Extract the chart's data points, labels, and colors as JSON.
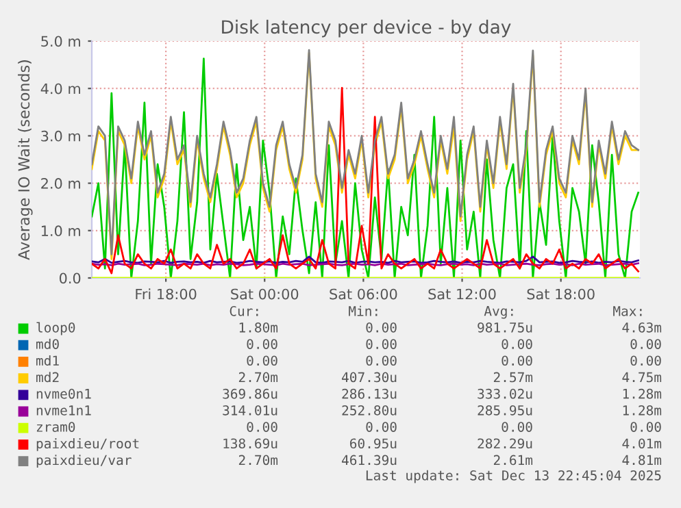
{
  "chart_data": {
    "type": "line",
    "title": "Disk latency per device - by day",
    "ylabel": "Average IO Wait (seconds)",
    "x": [
      "2025-12-12T13:30",
      "2025-12-12T13:54",
      "2025-12-12T14:18",
      "2025-12-12T14:42",
      "2025-12-12T15:06",
      "2025-12-12T15:30",
      "2025-12-12T15:54",
      "2025-12-12T16:18",
      "2025-12-12T16:42",
      "2025-12-12T17:06",
      "2025-12-12T17:30",
      "2025-12-12T17:54",
      "2025-12-12T18:18",
      "2025-12-12T18:42",
      "2025-12-12T19:06",
      "2025-12-12T19:30",
      "2025-12-12T19:54",
      "2025-12-12T20:18",
      "2025-12-12T20:42",
      "2025-12-12T21:06",
      "2025-12-12T21:30",
      "2025-12-12T21:54",
      "2025-12-12T22:18",
      "2025-12-12T22:42",
      "2025-12-12T23:06",
      "2025-12-12T23:30",
      "2025-12-12T23:54",
      "2025-12-13T00:18",
      "2025-12-13T00:42",
      "2025-12-13T01:06",
      "2025-12-13T01:30",
      "2025-12-13T01:54",
      "2025-12-13T02:18",
      "2025-12-13T02:42",
      "2025-12-13T03:06",
      "2025-12-13T03:30",
      "2025-12-13T03:54",
      "2025-12-13T04:18",
      "2025-12-13T04:42",
      "2025-12-13T05:06",
      "2025-12-13T05:30",
      "2025-12-13T05:54",
      "2025-12-13T06:18",
      "2025-12-13T06:42",
      "2025-12-13T07:06",
      "2025-12-13T07:30",
      "2025-12-13T07:54",
      "2025-12-13T08:18",
      "2025-12-13T08:42",
      "2025-12-13T09:06",
      "2025-12-13T09:30",
      "2025-12-13T09:54",
      "2025-12-13T10:18",
      "2025-12-13T10:42",
      "2025-12-13T11:06",
      "2025-12-13T11:30",
      "2025-12-13T11:54",
      "2025-12-13T12:18",
      "2025-12-13T12:42",
      "2025-12-13T13:06",
      "2025-12-13T13:30",
      "2025-12-13T13:54",
      "2025-12-13T14:18",
      "2025-12-13T14:42",
      "2025-12-13T15:06",
      "2025-12-13T15:30",
      "2025-12-13T15:54",
      "2025-12-13T16:18",
      "2025-12-13T16:42",
      "2025-12-13T17:06",
      "2025-12-13T17:30",
      "2025-12-13T17:54",
      "2025-12-13T18:18",
      "2025-12-13T18:42",
      "2025-12-13T19:06",
      "2025-12-13T19:30",
      "2025-12-13T19:54",
      "2025-12-13T20:18",
      "2025-12-13T20:42",
      "2025-12-13T21:06",
      "2025-12-13T21:30",
      "2025-12-13T21:54",
      "2025-12-13T22:18",
      "2025-12-13T22:42"
    ],
    "xlim": [
      "2025-12-12T13:30",
      "2025-12-13T22:48"
    ],
    "xticks": [
      {
        "value": "2025-12-12T18:00",
        "label": "Fri 18:00"
      },
      {
        "value": "2025-12-13T00:00",
        "label": "Sat 00:00"
      },
      {
        "value": "2025-12-13T06:00",
        "label": "Sat 06:00"
      },
      {
        "value": "2025-12-13T12:00",
        "label": "Sat 12:00"
      },
      {
        "value": "2025-12-13T18:00",
        "label": "Sat 18:00"
      }
    ],
    "ylim": [
      0,
      5.0
    ],
    "yticks": [
      {
        "value": 0,
        "label": "0.0"
      },
      {
        "value": 1,
        "label": "1.0 m"
      },
      {
        "value": 2,
        "label": "2.0 m"
      },
      {
        "value": 3,
        "label": "3.0 m"
      },
      {
        "value": 4,
        "label": "4.0 m"
      },
      {
        "value": 5,
        "label": "5.0 m"
      }
    ],
    "grid": true,
    "legend": "bottom",
    "line_style": "solid",
    "marker": "none",
    "series": [
      {
        "name": "loop0",
        "color": "#00cc00",
        "values": [
          1.3,
          2.0,
          0.2,
          3.9,
          0.5,
          2.8,
          0.0,
          1.2,
          3.7,
          0.3,
          2.4,
          1.5,
          0.0,
          1.2,
          3.5,
          0.4,
          1.6,
          4.63,
          0.6,
          2.2,
          1.1,
          0.0,
          2.4,
          0.8,
          1.5,
          0.2,
          2.9,
          1.8,
          0.0,
          1.3,
          0.5,
          2.1,
          1.0,
          0.1,
          1.6,
          0.0,
          2.8,
          0.3,
          1.2,
          0.0,
          2.0,
          0.6,
          0.0,
          1.7,
          0.4,
          2.3,
          0.0,
          1.5,
          0.9,
          2.6,
          0.0,
          1.1,
          3.4,
          0.3,
          1.9,
          0.0,
          2.9,
          0.6,
          1.4,
          0.0,
          2.5,
          0.8,
          0.0,
          1.9,
          2.4,
          0.2,
          3.1,
          0.0,
          1.6,
          0.7,
          3.0,
          1.2,
          0.0,
          1.9,
          1.4,
          0.3,
          2.8,
          1.6,
          0.0,
          2.6,
          0.5,
          0.0,
          1.4,
          1.8
        ]
      },
      {
        "name": "md0",
        "color": "#0066b3",
        "values": [
          null,
          null,
          null,
          null,
          null,
          null,
          null,
          null,
          null,
          null,
          null,
          null,
          null,
          null,
          null,
          null,
          null,
          null,
          null,
          null,
          null,
          null,
          null,
          null,
          null,
          null,
          null,
          null,
          null,
          null,
          null,
          null,
          null,
          null,
          null,
          null,
          null,
          null,
          null,
          null,
          null,
          null,
          null,
          null,
          null,
          null,
          null,
          null,
          null,
          null,
          null,
          null,
          null,
          null,
          null,
          null,
          null,
          null,
          null,
          null,
          null,
          null,
          null,
          null,
          null,
          null,
          null,
          null,
          null,
          null,
          null,
          null,
          null,
          null,
          null,
          null,
          null,
          null,
          null,
          null,
          null,
          null,
          null,
          null
        ]
      },
      {
        "name": "md1",
        "color": "#ff8000",
        "values": [
          null,
          null,
          null,
          null,
          null,
          null,
          null,
          null,
          null,
          null,
          null,
          null,
          null,
          null,
          null,
          null,
          null,
          null,
          null,
          null,
          null,
          null,
          null,
          null,
          null,
          null,
          null,
          null,
          null,
          null,
          null,
          null,
          null,
          null,
          null,
          null,
          null,
          null,
          null,
          null,
          null,
          null,
          null,
          null,
          null,
          null,
          null,
          null,
          null,
          null,
          null,
          null,
          null,
          null,
          null,
          null,
          null,
          null,
          null,
          null,
          null,
          null,
          null,
          null,
          null,
          null,
          null,
          null,
          null,
          null,
          null,
          null,
          null,
          null,
          null,
          null,
          null,
          null,
          null,
          null,
          null,
          null,
          null,
          null
        ]
      },
      {
        "name": "md2",
        "color": "#ffcc00",
        "values": [
          2.3,
          3.1,
          2.9,
          0.4,
          3.1,
          2.8,
          2.0,
          3.2,
          2.5,
          3.0,
          1.7,
          2.1,
          3.3,
          2.4,
          2.7,
          1.5,
          2.9,
          2.1,
          1.6,
          2.3,
          3.2,
          2.6,
          1.7,
          2.0,
          2.8,
          3.3,
          1.9,
          1.4,
          2.7,
          3.2,
          2.3,
          1.8,
          2.5,
          4.75,
          2.1,
          1.5,
          3.2,
          2.8,
          1.8,
          2.6,
          2.1,
          2.9,
          1.7,
          2.8,
          3.3,
          2.1,
          2.5,
          3.6,
          2.0,
          2.4,
          3.0,
          2.3,
          1.7,
          2.9,
          2.2,
          3.2,
          1.2,
          2.5,
          3.1,
          1.4,
          2.8,
          1.9,
          3.3,
          2.3,
          4.0,
          1.8,
          2.7,
          4.7,
          1.5,
          2.6,
          3.1,
          2.0,
          1.7,
          2.9,
          2.4,
          3.9,
          1.5,
          2.8,
          2.1,
          3.2,
          2.4,
          3.0,
          2.7,
          2.7
        ]
      },
      {
        "name": "nvme0n1",
        "color": "#330099",
        "values": [
          0.35,
          0.33,
          0.4,
          0.32,
          0.34,
          0.36,
          0.33,
          0.32,
          0.35,
          0.34,
          0.33,
          0.36,
          0.32,
          0.34,
          0.35,
          0.33,
          0.34,
          0.32,
          0.36,
          0.33,
          0.34,
          0.35,
          0.32,
          0.33,
          0.36,
          0.34,
          0.33,
          0.35,
          0.32,
          0.34,
          0.33,
          0.36,
          0.34,
          0.45,
          0.33,
          0.32,
          0.35,
          0.34,
          0.33,
          0.36,
          0.32,
          0.34,
          0.35,
          0.33,
          0.34,
          0.32,
          0.36,
          0.33,
          0.34,
          0.35,
          0.32,
          0.33,
          0.36,
          0.34,
          0.33,
          0.35,
          0.32,
          0.34,
          0.33,
          0.36,
          0.34,
          0.33,
          0.32,
          0.35,
          0.34,
          0.33,
          0.36,
          0.45,
          0.33,
          0.34,
          0.35,
          0.32,
          0.33,
          0.36,
          0.34,
          0.33,
          0.35,
          0.32,
          0.34,
          0.33,
          0.36,
          0.34,
          0.33,
          0.37
        ]
      },
      {
        "name": "nvme1n1",
        "color": "#990099",
        "values": [
          0.3,
          0.28,
          0.29,
          0.27,
          0.3,
          0.28,
          0.29,
          0.3,
          0.27,
          0.28,
          0.3,
          0.29,
          0.28,
          0.27,
          0.3,
          0.29,
          0.28,
          0.3,
          0.27,
          0.29,
          0.28,
          0.3,
          0.29,
          0.27,
          0.28,
          0.3,
          0.29,
          0.28,
          0.27,
          0.3,
          0.28,
          0.29,
          0.3,
          0.27,
          0.28,
          0.29,
          0.3,
          0.28,
          0.27,
          0.29,
          0.3,
          0.28,
          0.29,
          0.27,
          0.3,
          0.28,
          0.29,
          0.3,
          0.27,
          0.28,
          0.29,
          0.3,
          0.28,
          0.27,
          0.29,
          0.3,
          0.28,
          0.29,
          0.27,
          0.3,
          0.28,
          0.29,
          0.3,
          0.27,
          0.28,
          0.29,
          0.3,
          0.28,
          0.27,
          0.29,
          0.3,
          0.28,
          0.29,
          0.27,
          0.3,
          0.28,
          0.29,
          0.3,
          0.27,
          0.28,
          0.29,
          0.3,
          0.28,
          0.31
        ]
      },
      {
        "name": "zram0",
        "color": "#ccff00",
        "x": [
          "2025-12-12T13:30",
          "2025-12-13T22:42"
        ],
        "values": [
          0,
          0
        ]
      },
      {
        "name": "paixdieu/root",
        "color": "#ff0000",
        "values": [
          0.3,
          0.2,
          0.4,
          0.1,
          0.9,
          0.3,
          0.2,
          0.5,
          0.3,
          0.2,
          0.4,
          0.3,
          0.6,
          0.2,
          0.3,
          0.2,
          0.5,
          0.3,
          0.2,
          0.7,
          0.3,
          0.4,
          0.2,
          0.3,
          0.6,
          0.2,
          0.3,
          0.4,
          0.2,
          0.9,
          0.3,
          0.2,
          0.3,
          0.4,
          0.2,
          0.8,
          0.3,
          0.2,
          4.01,
          0.3,
          0.2,
          1.1,
          0.3,
          3.4,
          0.2,
          0.5,
          0.3,
          0.2,
          0.3,
          0.4,
          0.2,
          0.3,
          0.2,
          0.6,
          0.3,
          0.2,
          0.3,
          0.4,
          0.3,
          0.2,
          0.8,
          0.3,
          0.2,
          0.3,
          0.4,
          0.2,
          0.5,
          0.3,
          0.2,
          0.4,
          0.3,
          0.6,
          0.2,
          0.3,
          0.2,
          0.4,
          0.3,
          0.5,
          0.2,
          0.3,
          0.4,
          0.2,
          0.3,
          0.14
        ]
      },
      {
        "name": "paixdieu/var",
        "color": "#808080",
        "values": [
          2.4,
          3.2,
          3.0,
          0.5,
          3.2,
          2.9,
          2.1,
          3.3,
          2.6,
          3.1,
          1.8,
          2.2,
          3.4,
          2.5,
          2.8,
          1.6,
          3.0,
          2.2,
          1.7,
          2.4,
          3.3,
          2.7,
          1.8,
          2.1,
          2.9,
          3.4,
          2.0,
          1.5,
          2.8,
          3.3,
          2.4,
          1.9,
          2.6,
          4.81,
          2.2,
          1.6,
          3.3,
          2.9,
          1.9,
          2.7,
          2.2,
          3.0,
          1.8,
          2.9,
          3.4,
          2.2,
          2.6,
          3.7,
          2.1,
          2.5,
          3.1,
          2.4,
          1.8,
          3.0,
          2.3,
          3.4,
          1.3,
          2.6,
          3.2,
          1.5,
          2.9,
          2.0,
          3.4,
          2.4,
          4.1,
          1.9,
          2.8,
          4.8,
          1.6,
          2.7,
          3.2,
          2.1,
          1.8,
          3.0,
          2.5,
          4.0,
          1.6,
          2.9,
          2.2,
          3.3,
          2.5,
          3.1,
          2.8,
          2.7
        ]
      }
    ],
    "annotations": [
      "Cur:",
      "Min:",
      "Avg:",
      "Max:",
      "1.80m",
      "0.00",
      "981.75u",
      "4.63m",
      "0.00",
      "0.00",
      "0.00",
      "0.00",
      "0.00",
      "0.00",
      "0.00",
      "0.00",
      "2.70m",
      "407.30u",
      "2.57m",
      "4.75m",
      "369.86u",
      "286.13u",
      "333.02u",
      "1.28m",
      "314.01u",
      "252.80u",
      "285.95u",
      "1.28m",
      "0.00",
      "0.00",
      "0.00",
      "0.00",
      "138.69u",
      "60.95u",
      "282.29u",
      "4.01m",
      "2.70m",
      "461.39u",
      "2.61m",
      "4.81m",
      "Last update: Sat Dec 13 22:45:04 2025"
    ]
  }
}
